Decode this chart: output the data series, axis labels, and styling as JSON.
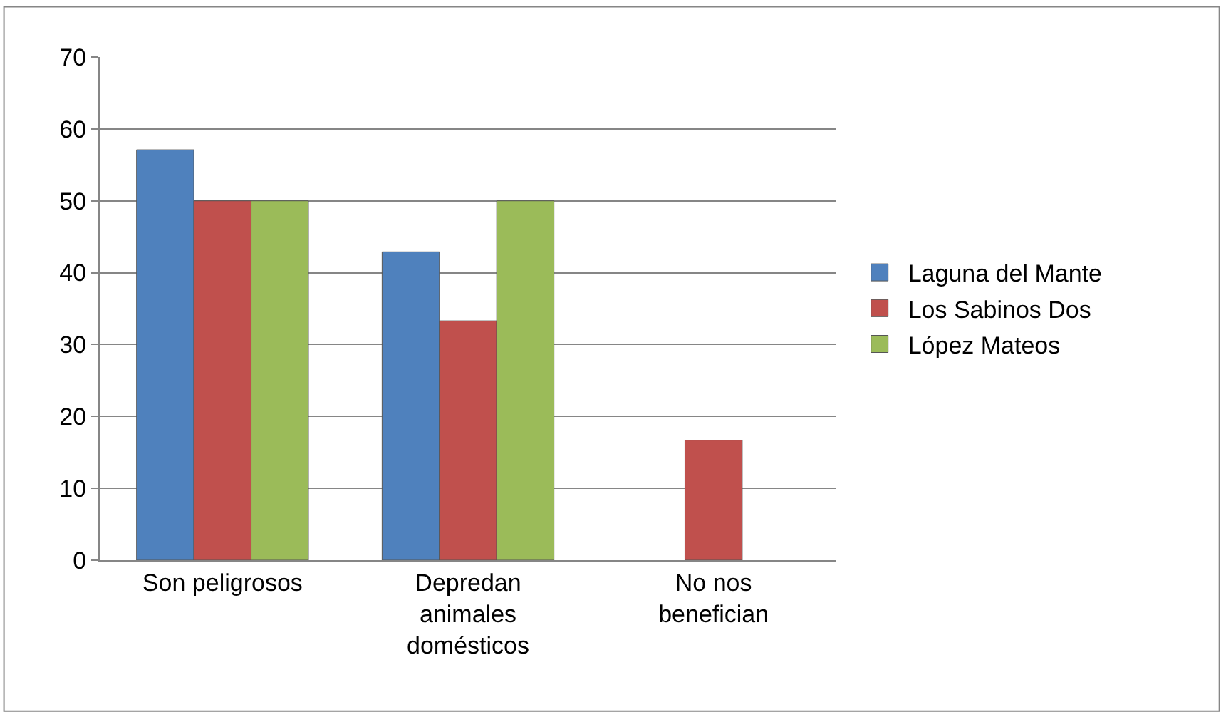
{
  "chart_data": {
    "type": "bar",
    "categories": [
      "Son peligrosos",
      "Depredan animales domésticos",
      "No nos benefician"
    ],
    "series": [
      {
        "name": "Laguna del Mante",
        "color": "#4f81bd",
        "values": [
          57.1,
          42.9,
          null
        ]
      },
      {
        "name": "Los Sabinos Dos",
        "color": "#c0504d",
        "values": [
          50,
          33.3,
          16.7
        ]
      },
      {
        "name": "López Mateos",
        "color": "#9bbb59",
        "values": [
          50,
          50,
          null
        ]
      }
    ],
    "ylim": [
      0,
      70
    ],
    "yticks": [
      0,
      10,
      20,
      30,
      40,
      50,
      60,
      70
    ],
    "grid": "y",
    "legend": "right"
  }
}
